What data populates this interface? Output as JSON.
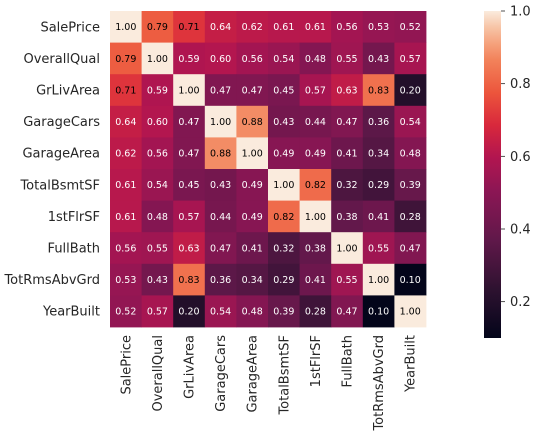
{
  "chart_data": {
    "type": "heatmap",
    "title": "",
    "xlabel": "",
    "ylabel": "",
    "rows": [
      "SalePrice",
      "OverallQual",
      "GrLivArea",
      "GarageCars",
      "GarageArea",
      "TotalBsmtSF",
      "1stFlrSF",
      "FullBath",
      "TotRmsAbvGrd",
      "YearBuilt"
    ],
    "columns": [
      "SalePrice",
      "OverallQual",
      "GrLivArea",
      "GarageCars",
      "GarageArea",
      "TotalBsmtSF",
      "1stFlrSF",
      "FullBath",
      "TotRmsAbvGrd",
      "YearBuilt"
    ],
    "values": [
      [
        1.0,
        0.79,
        0.71,
        0.64,
        0.62,
        0.61,
        0.61,
        0.56,
        0.53,
        0.52
      ],
      [
        0.79,
        1.0,
        0.59,
        0.6,
        0.56,
        0.54,
        0.48,
        0.55,
        0.43,
        0.57
      ],
      [
        0.71,
        0.59,
        1.0,
        0.47,
        0.47,
        0.45,
        0.57,
        0.63,
        0.83,
        0.2
      ],
      [
        0.64,
        0.6,
        0.47,
        1.0,
        0.88,
        0.43,
        0.44,
        0.47,
        0.36,
        0.54
      ],
      [
        0.62,
        0.56,
        0.47,
        0.88,
        1.0,
        0.49,
        0.49,
        0.41,
        0.34,
        0.48
      ],
      [
        0.61,
        0.54,
        0.45,
        0.43,
        0.49,
        1.0,
        0.82,
        0.32,
        0.29,
        0.39
      ],
      [
        0.61,
        0.48,
        0.57,
        0.44,
        0.49,
        0.82,
        1.0,
        0.38,
        0.41,
        0.28
      ],
      [
        0.56,
        0.55,
        0.63,
        0.47,
        0.41,
        0.32,
        0.38,
        1.0,
        0.55,
        0.47
      ],
      [
        0.53,
        0.43,
        0.83,
        0.36,
        0.34,
        0.29,
        0.41,
        0.55,
        1.0,
        0.1
      ],
      [
        0.52,
        0.57,
        0.2,
        0.54,
        0.48,
        0.39,
        0.28,
        0.47,
        0.1,
        1.0
      ]
    ],
    "value_labels": [
      [
        "1.00",
        "0.79",
        "0.71",
        "0.64",
        "0.62",
        "0.61",
        "0.61",
        "0.56",
        "0.53",
        "0.52"
      ],
      [
        "0.79",
        "1.00",
        "0.59",
        "0.60",
        "0.56",
        "0.54",
        "0.48",
        "0.55",
        "0.43",
        "0.57"
      ],
      [
        "0.71",
        "0.59",
        "1.00",
        "0.47",
        "0.47",
        "0.45",
        "0.57",
        "0.63",
        "0.83",
        "0.20"
      ],
      [
        "0.64",
        "0.60",
        "0.47",
        "1.00",
        "0.88",
        "0.43",
        "0.44",
        "0.47",
        "0.36",
        "0.54"
      ],
      [
        "0.62",
        "0.56",
        "0.47",
        "0.88",
        "1.00",
        "0.49",
        "0.49",
        "0.41",
        "0.34",
        "0.48"
      ],
      [
        "0.61",
        "0.54",
        "0.45",
        "0.43",
        "0.49",
        "1.00",
        "0.82",
        "0.32",
        "0.29",
        "0.39"
      ],
      [
        "0.61",
        "0.48",
        "0.57",
        "0.44",
        "0.49",
        "0.82",
        "1.00",
        "0.38",
        "0.41",
        "0.28"
      ],
      [
        "0.56",
        "0.55",
        "0.63",
        "0.47",
        "0.41",
        "0.32",
        "0.38",
        "1.00",
        "0.55",
        "0.47"
      ],
      [
        "0.53",
        "0.43",
        "0.83",
        "0.36",
        "0.34",
        "0.29",
        "0.41",
        "0.55",
        "1.00",
        "0.10"
      ],
      [
        "0.52",
        "0.57",
        "0.20",
        "0.54",
        "0.48",
        "0.39",
        "0.28",
        "0.47",
        "0.10",
        "1.00"
      ]
    ],
    "colormap": "rocket",
    "vmin": 0.1,
    "vmax": 1.0,
    "colorbar": {
      "ticks": [
        0.2,
        0.4,
        0.6,
        0.8,
        1.0
      ],
      "tick_labels": [
        "0.2",
        "0.4",
        "0.6",
        "0.8",
        "1.0"
      ],
      "placement": "right"
    },
    "colors": {
      "text_dark_cells": "#ffffff",
      "text_light_cells": "#000000"
    }
  }
}
